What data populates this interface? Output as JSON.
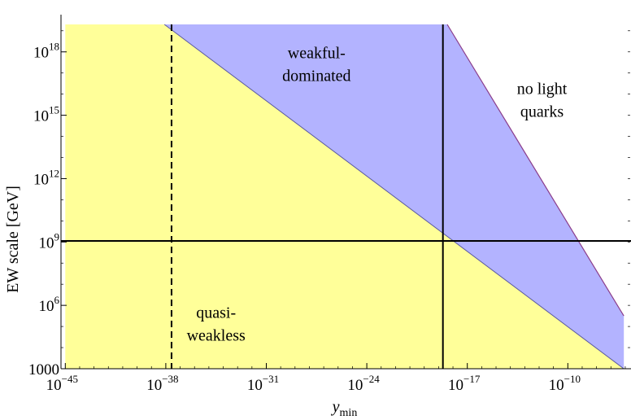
{
  "chart_data": {
    "type": "area",
    "x_scale": "log10",
    "y_scale": "log10",
    "xlim": [
      "1e-45.3",
      "1e-5.6"
    ],
    "ylim": [
      "1e3",
      "1e19.3"
    ],
    "xlabel_main": "y",
    "xlabel_sub": "min",
    "ylabel": "EW scale [GeV]",
    "x_ticks": [
      {
        "base": "10",
        "exp": "−45",
        "log_value": -45
      },
      {
        "base": "10",
        "exp": "−38",
        "log_value": -38
      },
      {
        "base": "10",
        "exp": "−31",
        "log_value": -31
      },
      {
        "base": "10",
        "exp": "−24",
        "log_value": -24
      },
      {
        "base": "10",
        "exp": "−17",
        "log_value": -17
      },
      {
        "base": "10",
        "exp": "−10",
        "log_value": -10
      }
    ],
    "y_ticks": [
      {
        "base": "1000",
        "exp": "",
        "log_value": 3
      },
      {
        "base": "10",
        "exp": "6",
        "log_value": 6
      },
      {
        "base": "10",
        "exp": "9",
        "log_value": 9
      },
      {
        "base": "10",
        "exp": "12",
        "log_value": 12
      },
      {
        "base": "10",
        "exp": "15",
        "log_value": 15
      },
      {
        "base": "10",
        "exp": "18",
        "log_value": 18
      }
    ],
    "regions": [
      {
        "label_lines": [
          "quasi-",
          "weakless"
        ],
        "color": "#ffff99",
        "polygon_log": [
          [
            -45,
            3
          ],
          [
            -45,
            19.3
          ],
          [
            -38.1,
            19.3
          ],
          [
            -6.1,
            3
          ]
        ],
        "label_pos_log": [
          -34.5,
          5.4
        ]
      },
      {
        "label_lines": [
          "weakful-",
          "dominated"
        ],
        "color": "#b3b3ff",
        "polygon_log": [
          [
            -38.1,
            19.3
          ],
          [
            -18.4,
            19.3
          ],
          [
            -6.1,
            5.5
          ],
          [
            -6.1,
            3
          ]
        ],
        "label_pos_log": [
          -27.5,
          17.7
        ]
      },
      {
        "label_lines": [
          "no light",
          "quarks"
        ],
        "color": "#ffffff",
        "polygon_log": [],
        "label_pos_log": [
          -11.8,
          16.0
        ]
      }
    ],
    "lines": [
      {
        "style": "solid",
        "orientation": "horizontal",
        "log_value": 9.05
      },
      {
        "style": "solid",
        "orientation": "vertical",
        "log_value": -18.7
      },
      {
        "style": "dashed",
        "orientation": "vertical",
        "log_value": -37.6
      }
    ],
    "grid": false,
    "colors": {
      "yellow_fill": "#ffff99",
      "blue_fill": "#b3b3ff",
      "boundary": "#5a5aa0",
      "right_boundary": "#8a3c8a",
      "axis": "#000000"
    }
  }
}
